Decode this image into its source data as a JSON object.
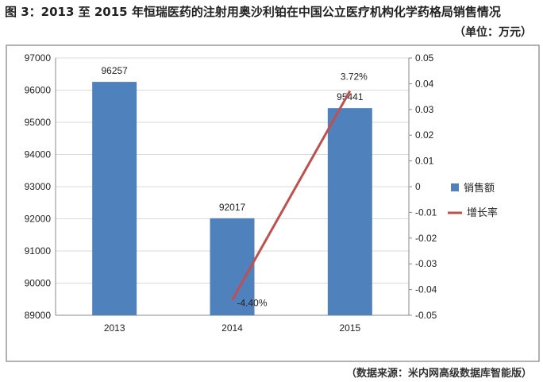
{
  "title": "图 3：2013 至 2015 年恒瑞医药的注射用奥沙利铂在中国公立医疗机构化学药格局销售情况",
  "unit": "（单位：万元）",
  "source": "（数据来源：米内网高级数据库智能版）",
  "chart_data": {
    "type": "bar+line",
    "categories": [
      "2013",
      "2014",
      "2015"
    ],
    "series": [
      {
        "name": "销售额",
        "type": "bar",
        "axis": "left",
        "values": [
          96257,
          92017,
          95441
        ],
        "labels": [
          "96257",
          "92017",
          "95441"
        ],
        "color": "#4f81bd"
      },
      {
        "name": "增长率",
        "type": "line",
        "axis": "right",
        "points": [
          {
            "x": "2014",
            "y": -0.044
          },
          {
            "x": "2015",
            "y": 0.0372
          }
        ],
        "labels": [
          "-4.40%",
          "3.72%"
        ],
        "color": "#c0504d"
      }
    ],
    "left_axis": {
      "range": [
        89000,
        97000
      ],
      "ticks": [
        "89000",
        "90000",
        "91000",
        "92000",
        "93000",
        "94000",
        "95000",
        "96000",
        "97000"
      ]
    },
    "right_axis": {
      "range": [
        -0.05,
        0.05
      ],
      "ticks": [
        "-0.05",
        "-0.04",
        "-0.03",
        "-0.02",
        "-0.01",
        "0",
        "0.01",
        "0.02",
        "0.03",
        "0.04",
        "0.05"
      ]
    },
    "grid": true,
    "legend": "right"
  }
}
